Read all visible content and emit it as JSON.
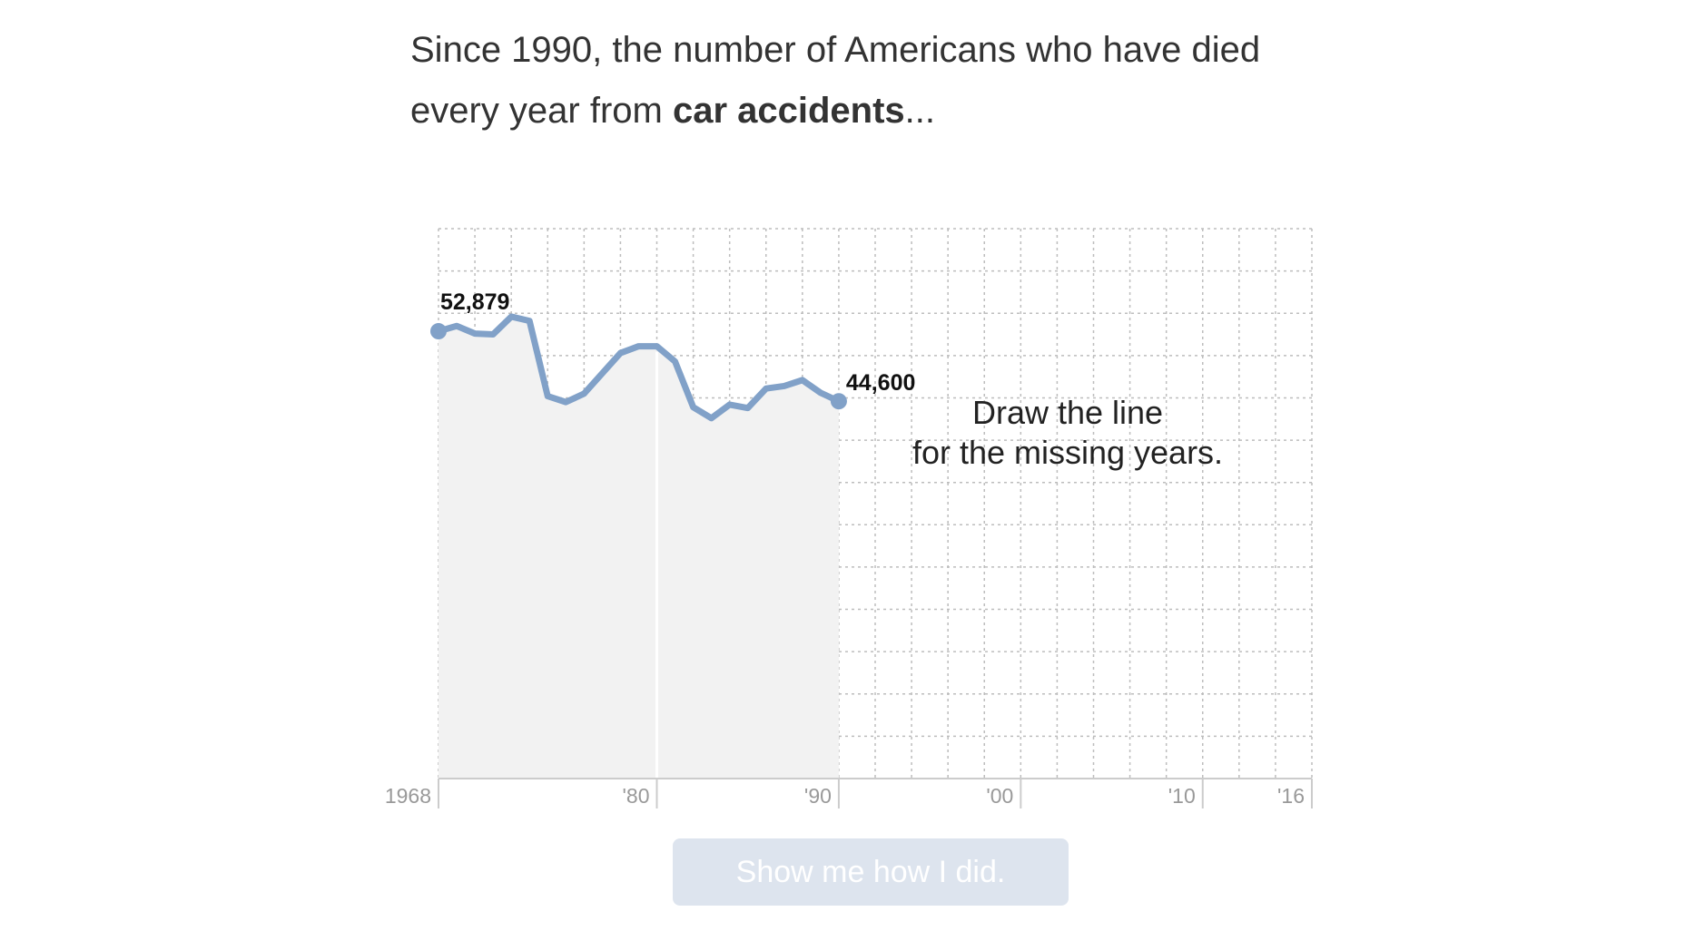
{
  "headline": {
    "text_before": "Since 1990, the number of Americans who have died every year from ",
    "bold_text": "car accidents",
    "text_after": "..."
  },
  "chart_data": {
    "type": "line",
    "x_range": [
      1968,
      2016
    ],
    "y_range": [
      0,
      65000
    ],
    "grid": true,
    "known_until": 1990,
    "series": [
      {
        "values": [
          {
            "x": 1968,
            "y": 52879
          },
          {
            "x": 1969,
            "y": 53500
          },
          {
            "x": 1970,
            "y": 52600
          },
          {
            "x": 1971,
            "y": 52500
          },
          {
            "x": 1972,
            "y": 54600
          },
          {
            "x": 1973,
            "y": 54100
          },
          {
            "x": 1974,
            "y": 45200
          },
          {
            "x": 1975,
            "y": 44500
          },
          {
            "x": 1976,
            "y": 45500
          },
          {
            "x": 1977,
            "y": 47900
          },
          {
            "x": 1978,
            "y": 50300
          },
          {
            "x": 1979,
            "y": 51100
          },
          {
            "x": 1980,
            "y": 51100
          },
          {
            "x": 1981,
            "y": 49300
          },
          {
            "x": 1982,
            "y": 43900
          },
          {
            "x": 1983,
            "y": 42600
          },
          {
            "x": 1984,
            "y": 44200
          },
          {
            "x": 1985,
            "y": 43800
          },
          {
            "x": 1986,
            "y": 46100
          },
          {
            "x": 1987,
            "y": 46400
          },
          {
            "x": 1988,
            "y": 47100
          },
          {
            "x": 1989,
            "y": 45600
          },
          {
            "x": 1990,
            "y": 44600
          }
        ],
        "color": "#81a1c8"
      }
    ],
    "x_ticks": [
      "1968",
      "'80",
      "'90",
      "'00",
      "'10",
      "'16"
    ],
    "x_tick_years": [
      1968,
      1980,
      1990,
      2000,
      2010,
      2016
    ],
    "labels": {
      "start": "52,879",
      "end": "44,600"
    },
    "prompt_lines": [
      "Draw the line",
      "for the missing years."
    ]
  },
  "button": {
    "label": "Show me how I did."
  },
  "colors": {
    "line": "#81a1c8",
    "known_area": "#f2f2f2",
    "button_bg": "#dde4ee"
  }
}
